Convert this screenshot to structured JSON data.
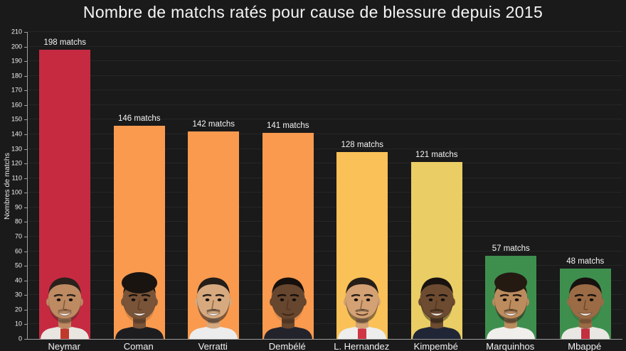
{
  "title": "Nombre de matchs ratés pour cause de blessure depuis 2015",
  "colors": {
    "background": "#1a1a1a",
    "axis": "#9e9e9e",
    "gridline": "#262626",
    "text": "#f2f2f2",
    "red": "#c52a41",
    "orange": "#f99a4f",
    "amber": "#f9c157",
    "yellow": "#eace65",
    "green": "#3e8f4e"
  },
  "chart_data": {
    "type": "bar",
    "title": "Nombre de matchs ratés pour cause de blessure depuis 2015",
    "xlabel": "",
    "ylabel": "Nombres de matchs",
    "ylim": [
      0,
      210
    ],
    "ytick_step": 10,
    "grid": true,
    "legend": false,
    "categories": [
      "Neymar",
      "Coman",
      "Verratti",
      "Dembélé",
      "L. Hernandez",
      "Kimpembé",
      "Marquinhos",
      "Mbappé"
    ],
    "values": [
      198,
      146,
      142,
      141,
      128,
      121,
      57,
      48
    ],
    "bar_labels": [
      "198 matchs",
      "146 matchs",
      "142 matchs",
      "141 matchs",
      "128 matchs",
      "121 matchs",
      "57 matchs",
      "48 matchs"
    ],
    "bar_colors": [
      "#c52a41",
      "#f99a4f",
      "#f99a4f",
      "#f99a4f",
      "#f9c157",
      "#eace65",
      "#3e8f4e",
      "#3e8f4e"
    ]
  },
  "avatars": [
    {
      "icon": "neymar-portrait-icon",
      "skin": "#bd8a62",
      "hair": "#2a211c",
      "jersey": "#e9e6e2",
      "stripe": "#c0392b",
      "beard": 0.35,
      "smile": "teeth",
      "style": "short"
    },
    {
      "icon": "coman-portrait-icon",
      "skin": "#7a5438",
      "hair": "#19140f",
      "jersey": "#1d1d20",
      "stripe": null,
      "beard": 0.15,
      "smile": "teeth",
      "style": "afro"
    },
    {
      "icon": "verratti-portrait-icon",
      "skin": "#d6a97f",
      "hair": "#241e19",
      "jersey": "#ececec",
      "stripe": null,
      "beard": 0.55,
      "smile": "teeth",
      "style": "short"
    },
    {
      "icon": "dembele-portrait-icon",
      "skin": "#66462e",
      "hair": "#15100c",
      "jersey": "#23232b",
      "stripe": null,
      "beard": 0.1,
      "smile": "line",
      "style": "short"
    },
    {
      "icon": "hernandez-portrait-icon",
      "skin": "#d3a174",
      "hair": "#261f18",
      "jersey": "#ededed",
      "stripe": "#cf3545",
      "beard": 0.5,
      "smile": "line",
      "style": "short"
    },
    {
      "icon": "kimpembe-portrait-icon",
      "skin": "#6d4b31",
      "hair": "#181310",
      "jersey": "#202636",
      "stripe": null,
      "beard": 0.45,
      "smile": "teeth",
      "style": "short"
    },
    {
      "icon": "marquinhos-portrait-icon",
      "skin": "#bc8c5e",
      "hair": "#241a12",
      "jersey": "#f0efec",
      "stripe": null,
      "beard": 0.5,
      "smile": "teeth",
      "style": "wavy"
    },
    {
      "icon": "mbappe-portrait-icon",
      "skin": "#9b6b45",
      "hair": "#171210",
      "jersey": "#e9e7e3",
      "stripe": "#c23040",
      "beard": 0.12,
      "smile": "teeth",
      "style": "short"
    }
  ]
}
